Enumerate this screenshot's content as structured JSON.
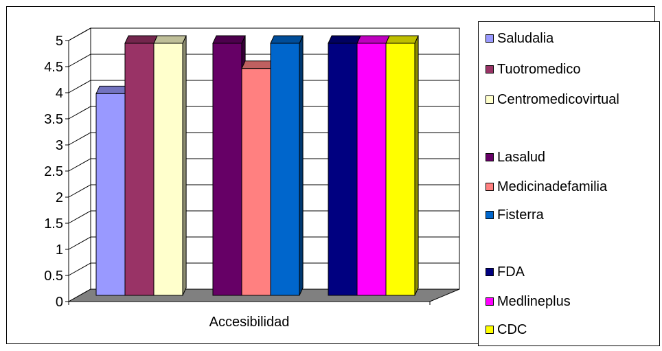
{
  "chart_data": {
    "type": "bar",
    "title": "",
    "xlabel": "",
    "ylabel": "",
    "categories": [
      "Accesibilidad"
    ],
    "ylim": [
      0,
      5
    ],
    "yticks": [
      "0",
      "0.5",
      "1",
      "1.5",
      "2",
      "2.5",
      "3",
      "3.5",
      "4",
      "4.5",
      "5"
    ],
    "grid": true,
    "legend_position": "right",
    "style": "3d",
    "series": [
      {
        "name": "Saludalia",
        "values": [
          4
        ],
        "color": "#9999ff"
      },
      {
        "name": "Tuotromedico",
        "values": [
          5
        ],
        "color": "#993366"
      },
      {
        "name": "Centromedicovirtual",
        "values": [
          5
        ],
        "color": "#ffffcc"
      },
      {
        "name": "Lasalud",
        "values": [
          5
        ],
        "color": "#660066"
      },
      {
        "name": "Medicinadefamilia",
        "values": [
          4.5
        ],
        "color": "#ff8080"
      },
      {
        "name": "Fisterra",
        "values": [
          5
        ],
        "color": "#0066cc"
      },
      {
        "name": "FDA",
        "values": [
          5
        ],
        "color": "#000080"
      },
      {
        "name": "Medlineplus",
        "values": [
          5
        ],
        "color": "#ff00ff"
      },
      {
        "name": "CDC",
        "values": [
          5
        ],
        "color": "#ffff00"
      }
    ]
  }
}
